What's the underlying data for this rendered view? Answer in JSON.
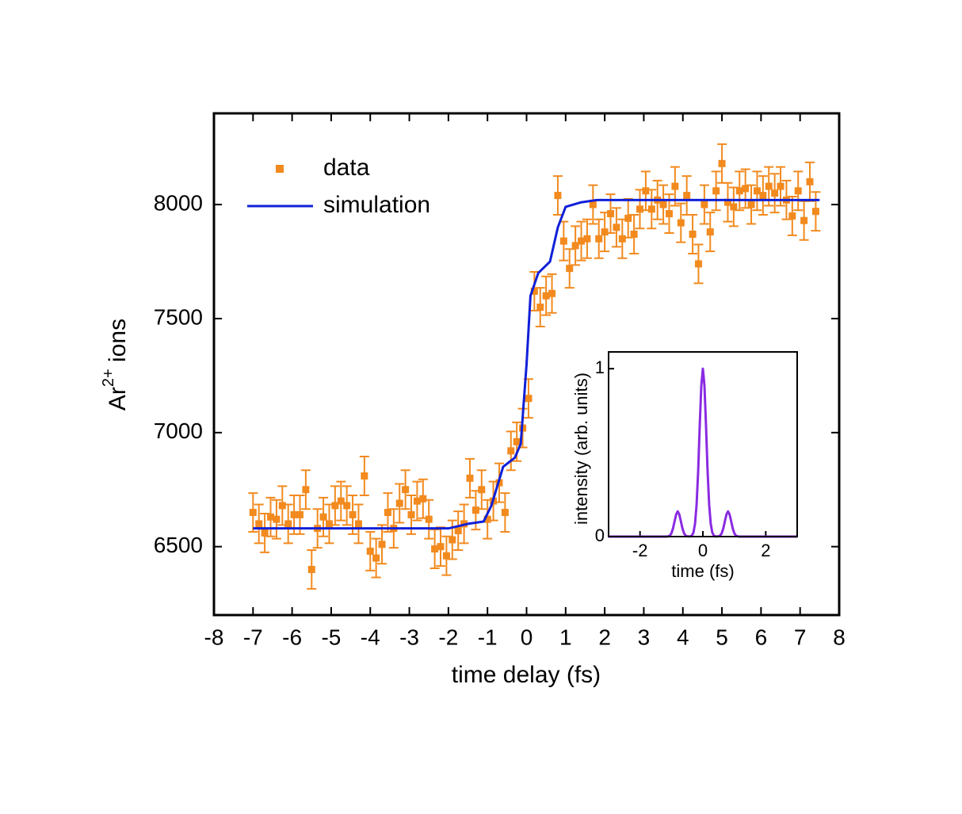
{
  "chart_data": [
    {
      "type": "scatter_line",
      "x_label": "time delay (fs)",
      "y_label": {
        "base": "Ar",
        "sup": "2+",
        "rest": " ions"
      },
      "xlim": [
        -8,
        8
      ],
      "xticks": [
        -8,
        -7,
        -6,
        -5,
        -4,
        -3,
        -2,
        -1,
        0,
        1,
        2,
        3,
        4,
        5,
        6,
        7,
        8
      ],
      "ylim": [
        6200,
        8400
      ],
      "yticks": [
        6500,
        7000,
        7500,
        8000
      ],
      "legend": "upper left",
      "series": [
        {
          "name": "data",
          "kind": "points",
          "color": "#f28a1e",
          "error": 85,
          "x": [
            -7.0,
            -6.85,
            -6.7,
            -6.55,
            -6.4,
            -6.25,
            -6.1,
            -5.95,
            -5.8,
            -5.65,
            -5.5,
            -5.35,
            -5.2,
            -5.05,
            -4.9,
            -4.75,
            -4.6,
            -4.45,
            -4.3,
            -4.15,
            -4.0,
            -3.85,
            -3.7,
            -3.55,
            -3.4,
            -3.25,
            -3.1,
            -2.95,
            -2.8,
            -2.65,
            -2.5,
            -2.35,
            -2.2,
            -2.05,
            -1.9,
            -1.75,
            -1.6,
            -1.45,
            -1.3,
            -1.15,
            -1.0,
            -0.85,
            -0.7,
            -0.55,
            -0.4,
            -0.25,
            -0.1,
            0.05,
            0.2,
            0.35,
            0.5,
            0.65,
            0.8,
            0.95,
            1.1,
            1.25,
            1.4,
            1.55,
            1.7,
            1.85,
            2.0,
            2.15,
            2.3,
            2.45,
            2.6,
            2.75,
            2.9,
            3.05,
            3.2,
            3.35,
            3.5,
            3.65,
            3.8,
            3.95,
            4.1,
            4.25,
            4.4,
            4.55,
            4.7,
            4.85,
            5.0,
            5.15,
            5.3,
            5.45,
            5.6,
            5.75,
            5.9,
            6.05,
            6.2,
            6.35,
            6.5,
            6.65,
            6.8,
            6.95,
            7.1,
            7.25,
            7.4
          ],
          "values": [
            6650,
            6600,
            6560,
            6630,
            6620,
            6680,
            6600,
            6640,
            6640,
            6750,
            6400,
            6580,
            6630,
            6600,
            6680,
            6700,
            6680,
            6640,
            6600,
            6810,
            6480,
            6450,
            6510,
            6650,
            6580,
            6690,
            6750,
            6640,
            6700,
            6710,
            6620,
            6490,
            6500,
            6460,
            6530,
            6570,
            6600,
            6800,
            6660,
            6750,
            6620,
            6700,
            6780,
            6650,
            6920,
            6960,
            7020,
            7150,
            7620,
            7550,
            7600,
            7610,
            8040,
            7840,
            7720,
            7820,
            7840,
            7850,
            8000,
            7850,
            7880,
            7960,
            7900,
            7850,
            7940,
            7870,
            7980,
            8060,
            7980,
            8020,
            8000,
            7960,
            8080,
            7920,
            8040,
            7870,
            7740,
            8000,
            7880,
            8060,
            8180,
            8010,
            7990,
            8060,
            8070,
            8000,
            8060,
            8040,
            8080,
            8050,
            8080,
            8020,
            7950,
            8060,
            7930,
            8100,
            7970
          ]
        },
        {
          "name": "simulation",
          "kind": "line",
          "color": "#1020d8",
          "x": [
            -7,
            -2,
            -1.5,
            -1.1,
            -0.9,
            -0.6,
            -0.3,
            -0.15,
            0,
            0.1,
            0.3,
            0.6,
            0.8,
            1.0,
            1.4,
            1.8,
            7.5
          ],
          "values": [
            6580,
            6580,
            6600,
            6610,
            6680,
            6850,
            6890,
            6950,
            7300,
            7600,
            7700,
            7750,
            7900,
            7990,
            8010,
            8020,
            8020
          ]
        }
      ]
    },
    {
      "type": "line",
      "x_label": "time (fs)",
      "y_label": "intensity (arb. units)",
      "xlim": [
        -3,
        3
      ],
      "xticks": [
        -2,
        0,
        2
      ],
      "ylim": [
        0,
        1.1
      ],
      "yticks": [
        0,
        1
      ],
      "series": [
        {
          "color": "#8a2be2",
          "x": [
            -3,
            -1.15,
            -1.1,
            -1.05,
            -1.0,
            -0.95,
            -0.9,
            -0.85,
            -0.8,
            -0.75,
            -0.7,
            -0.65,
            -0.6,
            -0.55,
            -0.5,
            -0.45,
            -0.4,
            -0.35,
            -0.3,
            -0.25,
            -0.2,
            -0.15,
            -0.1,
            -0.05,
            0,
            0.05,
            0.1,
            0.15,
            0.2,
            0.25,
            0.3,
            0.35,
            0.4,
            0.45,
            0.5,
            0.55,
            0.6,
            0.65,
            0.7,
            0.75,
            0.8,
            0.85,
            0.9,
            0.95,
            1.0,
            1.05,
            1.1,
            1.15,
            3
          ],
          "values": [
            0,
            0,
            0.002,
            0.006,
            0.02,
            0.049,
            0.091,
            0.132,
            0.15,
            0.132,
            0.091,
            0.049,
            0.02,
            0.006,
            0.002,
            0.001,
            0.001,
            0.006,
            0.024,
            0.076,
            0.19,
            0.39,
            0.66,
            0.9,
            1.0,
            0.9,
            0.66,
            0.39,
            0.19,
            0.076,
            0.024,
            0.006,
            0.001,
            0.001,
            0.002,
            0.006,
            0.02,
            0.049,
            0.091,
            0.132,
            0.15,
            0.132,
            0.091,
            0.049,
            0.02,
            0.006,
            0.002,
            0,
            0
          ]
        }
      ]
    }
  ]
}
